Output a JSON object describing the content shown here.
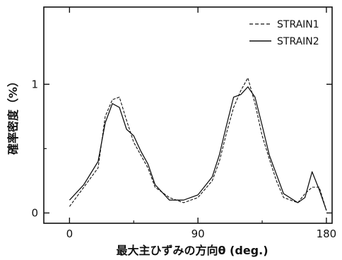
{
  "chart_data": {
    "type": "line",
    "xlabel": "最大主ひずみの方向θ (deg.)",
    "ylabel": "確率密度（%）",
    "xlim": [
      -18,
      184
    ],
    "ylim": [
      -0.08,
      1.6
    ],
    "xticks": [
      0,
      90,
      180
    ],
    "xtick_labels": [
      "0",
      "90",
      "180"
    ],
    "yticks": [
      0,
      1
    ],
    "ytick_labels": [
      "0",
      "1"
    ],
    "grid": false,
    "legend_position": "top-right",
    "colors": {
      "line": "#111111",
      "axis": "#111111",
      "background": "#ffffff"
    },
    "series": [
      {
        "name": "STRAIN1",
        "style": "dashed",
        "x": [
          0,
          10,
          20,
          25,
          30,
          35,
          40,
          45,
          50,
          55,
          60,
          70,
          80,
          90,
          100,
          105,
          110,
          115,
          120,
          125,
          130,
          135,
          140,
          145,
          150,
          160,
          165,
          170,
          175,
          180
        ],
        "y": [
          0.05,
          0.2,
          0.35,
          0.75,
          0.88,
          0.9,
          0.72,
          0.55,
          0.45,
          0.35,
          0.2,
          0.12,
          0.08,
          0.12,
          0.25,
          0.4,
          0.62,
          0.82,
          0.95,
          1.05,
          0.85,
          0.6,
          0.42,
          0.25,
          0.12,
          0.08,
          0.15,
          0.2,
          0.2,
          0.02
        ]
      },
      {
        "name": "STRAIN2",
        "style": "solid",
        "x": [
          0,
          10,
          20,
          25,
          30,
          35,
          40,
          45,
          50,
          55,
          60,
          70,
          80,
          90,
          100,
          105,
          110,
          115,
          120,
          125,
          130,
          135,
          140,
          145,
          150,
          160,
          165,
          170,
          175,
          180
        ],
        "y": [
          0.1,
          0.22,
          0.4,
          0.7,
          0.85,
          0.82,
          0.65,
          0.6,
          0.48,
          0.38,
          0.22,
          0.1,
          0.1,
          0.14,
          0.28,
          0.45,
          0.68,
          0.9,
          0.92,
          0.98,
          0.9,
          0.68,
          0.45,
          0.3,
          0.15,
          0.08,
          0.12,
          0.32,
          0.18,
          0.02
        ]
      }
    ]
  }
}
